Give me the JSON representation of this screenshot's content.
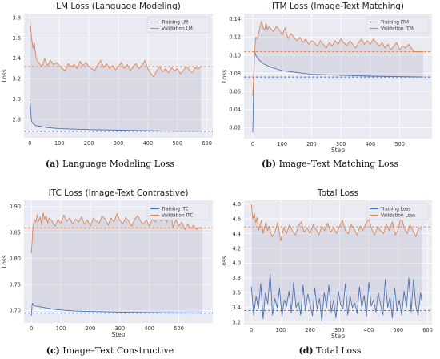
{
  "chart_data": [
    {
      "type": "line",
      "title": "LM Loss (Language Modeling)",
      "xlabel": "",
      "ylabel": "Loss",
      "xlim": [
        -20,
        620
      ],
      "ylim": [
        2.62,
        3.84
      ],
      "xticks": [
        0,
        100,
        200,
        300,
        400,
        500,
        600
      ],
      "yticks": [
        2.8,
        3.0,
        3.2,
        3.4,
        3.6,
        3.8
      ],
      "ytick_decimals": 1,
      "grid": true,
      "legend_position": "top-right",
      "series": [
        {
          "name": "Training LM",
          "color": "#4c72b0",
          "x": [
            0,
            5,
            10,
            20,
            40,
            60,
            80,
            100,
            150,
            200,
            300,
            400,
            500,
            580
          ],
          "y": [
            3.0,
            2.79,
            2.76,
            2.74,
            2.73,
            2.72,
            2.715,
            2.71,
            2.705,
            2.7,
            2.695,
            2.69,
            2.685,
            2.685
          ]
        },
        {
          "name": "Validation LM",
          "color": "#dd8452",
          "x": [
            0,
            5,
            10,
            15,
            20,
            25,
            30,
            35,
            40,
            45,
            50,
            55,
            60,
            70,
            80,
            90,
            100,
            110,
            120,
            130,
            140,
            150,
            160,
            170,
            180,
            190,
            200,
            210,
            220,
            230,
            240,
            250,
            260,
            270,
            280,
            290,
            300,
            310,
            320,
            330,
            340,
            350,
            360,
            370,
            380,
            390,
            400,
            410,
            420,
            430,
            440,
            450,
            460,
            470,
            480,
            490,
            500,
            510,
            520,
            530,
            540,
            550,
            560,
            570,
            580
          ],
          "y": [
            3.78,
            3.62,
            3.5,
            3.55,
            3.42,
            3.38,
            3.36,
            3.34,
            3.32,
            3.35,
            3.4,
            3.36,
            3.33,
            3.38,
            3.34,
            3.36,
            3.33,
            3.3,
            3.28,
            3.35,
            3.32,
            3.34,
            3.3,
            3.37,
            3.33,
            3.36,
            3.32,
            3.3,
            3.28,
            3.34,
            3.38,
            3.31,
            3.35,
            3.3,
            3.33,
            3.29,
            3.32,
            3.36,
            3.3,
            3.34,
            3.28,
            3.32,
            3.35,
            3.3,
            3.33,
            3.38,
            3.3,
            3.25,
            3.22,
            3.28,
            3.32,
            3.27,
            3.3,
            3.26,
            3.31,
            3.28,
            3.3,
            3.25,
            3.28,
            3.32,
            3.29,
            3.26,
            3.31,
            3.3,
            3.32
          ]
        }
      ],
      "hlines": [
        {
          "y": 3.32,
          "color": "#dd8452"
        },
        {
          "y": 2.685,
          "color": "#4c72b0"
        }
      ]
    },
    {
      "type": "line",
      "title": "ITM Loss (Image-Text Matching)",
      "xlabel": "Step",
      "ylabel": "Loss",
      "xlim": [
        -30,
        610
      ],
      "ylim": [
        0.008,
        0.146
      ],
      "xticks": [
        0,
        100,
        200,
        300,
        400,
        500
      ],
      "yticks": [
        0.02,
        0.04,
        0.06,
        0.08,
        0.1,
        0.12,
        0.14
      ],
      "ytick_decimals": 2,
      "grid": true,
      "legend_position": "top-right",
      "series": [
        {
          "name": "Training ITM",
          "color": "#4c72b0",
          "x": [
            0,
            3,
            6,
            10,
            20,
            40,
            60,
            80,
            100,
            150,
            200,
            300,
            400,
            500,
            580
          ],
          "y": [
            0.015,
            0.07,
            0.105,
            0.1,
            0.095,
            0.09,
            0.087,
            0.085,
            0.083,
            0.081,
            0.079,
            0.078,
            0.077,
            0.0765,
            0.076
          ]
        },
        {
          "name": "Validation ITM",
          "color": "#dd8452",
          "x": [
            0,
            5,
            10,
            15,
            20,
            25,
            30,
            35,
            40,
            45,
            50,
            55,
            60,
            70,
            80,
            90,
            100,
            110,
            120,
            130,
            140,
            150,
            160,
            170,
            180,
            190,
            200,
            210,
            220,
            230,
            240,
            250,
            260,
            270,
            280,
            290,
            300,
            310,
            320,
            330,
            340,
            350,
            360,
            370,
            380,
            390,
            400,
            410,
            420,
            430,
            440,
            450,
            460,
            470,
            480,
            490,
            500,
            510,
            520,
            530,
            540,
            550,
            560,
            570,
            580
          ],
          "y": [
            0.055,
            0.1,
            0.12,
            0.118,
            0.125,
            0.132,
            0.138,
            0.13,
            0.128,
            0.135,
            0.128,
            0.132,
            0.13,
            0.126,
            0.132,
            0.128,
            0.122,
            0.13,
            0.118,
            0.124,
            0.12,
            0.116,
            0.12,
            0.114,
            0.118,
            0.112,
            0.116,
            0.114,
            0.11,
            0.116,
            0.112,
            0.108,
            0.114,
            0.11,
            0.116,
            0.112,
            0.118,
            0.114,
            0.11,
            0.116,
            0.112,
            0.108,
            0.114,
            0.118,
            0.112,
            0.116,
            0.112,
            0.118,
            0.114,
            0.11,
            0.114,
            0.108,
            0.112,
            0.106,
            0.11,
            0.114,
            0.106,
            0.11,
            0.108,
            0.112,
            0.108,
            0.104,
            0.104,
            0.104,
            0.104
          ]
        }
      ],
      "hlines": [
        {
          "y": 0.104,
          "color": "#dd8452"
        },
        {
          "y": 0.076,
          "color": "#4c72b0"
        }
      ]
    },
    {
      "type": "line",
      "title": "ITC Loss (Image-Text Contrastive)",
      "xlabel": "Step",
      "ylabel": "Loss",
      "xlim": [
        -25,
        615
      ],
      "ylim": [
        0.676,
        0.912
      ],
      "xticks": [
        0,
        100,
        200,
        300,
        400,
        500
      ],
      "yticks": [
        0.7,
        0.75,
        0.8,
        0.85,
        0.9
      ],
      "ytick_decimals": 2,
      "grid": true,
      "legend_position": "top-right",
      "series": [
        {
          "name": "Training ITC",
          "color": "#4c72b0",
          "x": [
            0,
            3,
            6,
            10,
            20,
            40,
            60,
            80,
            100,
            150,
            200,
            300,
            400,
            500,
            580
          ],
          "y": [
            0.69,
            0.714,
            0.712,
            0.709,
            0.708,
            0.706,
            0.704,
            0.702,
            0.701,
            0.699,
            0.698,
            0.697,
            0.696,
            0.6955,
            0.695
          ]
        },
        {
          "name": "Validation ITC",
          "color": "#dd8452",
          "x": [
            0,
            5,
            10,
            15,
            20,
            25,
            30,
            35,
            40,
            45,
            50,
            55,
            60,
            70,
            80,
            90,
            100,
            110,
            120,
            130,
            140,
            150,
            160,
            170,
            180,
            190,
            200,
            210,
            220,
            230,
            240,
            250,
            260,
            270,
            280,
            290,
            300,
            310,
            320,
            330,
            340,
            350,
            360,
            370,
            380,
            390,
            400,
            410,
            420,
            430,
            440,
            450,
            460,
            470,
            480,
            490,
            500,
            510,
            520,
            530,
            540,
            550,
            560,
            570,
            580
          ],
          "y": [
            0.81,
            0.86,
            0.875,
            0.87,
            0.885,
            0.872,
            0.88,
            0.865,
            0.888,
            0.876,
            0.882,
            0.868,
            0.878,
            0.872,
            0.862,
            0.875,
            0.868,
            0.884,
            0.872,
            0.878,
            0.866,
            0.876,
            0.87,
            0.88,
            0.866,
            0.874,
            0.862,
            0.878,
            0.872,
            0.868,
            0.882,
            0.876,
            0.864,
            0.878,
            0.87,
            0.886,
            0.874,
            0.866,
            0.879,
            0.872,
            0.862,
            0.875,
            0.883,
            0.872,
            0.866,
            0.874,
            0.862,
            0.876,
            0.87,
            0.885,
            0.872,
            0.878,
            0.87,
            0.902,
            0.86,
            0.875,
            0.862,
            0.87,
            0.856,
            0.866,
            0.858,
            0.864,
            0.856,
            0.86,
            0.858
          ]
        }
      ],
      "hlines": [
        {
          "y": 0.859,
          "color": "#dd8452"
        },
        {
          "y": 0.695,
          "color": "#4c72b0"
        }
      ]
    },
    {
      "type": "line",
      "title": "Total Loss",
      "xlabel": "Step",
      "ylabel": "Loss",
      "xlim": [
        -25,
        615
      ],
      "ylim": [
        3.17,
        4.85
      ],
      "xticks": [
        0,
        100,
        200,
        300,
        400,
        500,
        600
      ],
      "yticks": [
        3.2,
        3.4,
        3.6,
        3.8,
        4.0,
        4.2,
        4.4,
        4.6,
        4.8
      ],
      "ytick_decimals": 1,
      "grid": true,
      "legend_position": "top-right",
      "series": [
        {
          "name": "Training Loss",
          "color": "#4c72b0",
          "x": [
            0,
            8,
            16,
            24,
            32,
            40,
            48,
            56,
            64,
            72,
            80,
            88,
            96,
            104,
            112,
            120,
            128,
            136,
            144,
            152,
            160,
            168,
            176,
            184,
            192,
            200,
            208,
            216,
            224,
            232,
            240,
            248,
            256,
            264,
            272,
            280,
            288,
            296,
            304,
            312,
            320,
            328,
            336,
            344,
            352,
            360,
            368,
            376,
            384,
            392,
            400,
            408,
            416,
            424,
            432,
            440,
            448,
            456,
            464,
            472,
            480,
            488,
            496,
            504,
            512,
            520,
            528,
            536,
            544,
            552,
            560,
            568,
            576,
            580
          ],
          "y": [
            3.68,
            3.3,
            3.55,
            3.38,
            3.72,
            3.25,
            3.6,
            3.45,
            3.86,
            3.3,
            3.52,
            3.4,
            3.66,
            3.28,
            3.5,
            3.42,
            3.62,
            3.33,
            3.74,
            3.4,
            3.48,
            3.3,
            3.7,
            3.36,
            3.58,
            3.44,
            3.29,
            3.66,
            3.38,
            3.52,
            3.22,
            3.6,
            3.4,
            3.7,
            3.34,
            3.5,
            3.26,
            3.62,
            3.44,
            3.38,
            3.72,
            3.3,
            3.55,
            3.4,
            3.46,
            3.32,
            3.68,
            3.4,
            3.56,
            3.28,
            3.74,
            3.42,
            3.5,
            3.34,
            3.6,
            3.44,
            3.3,
            3.78,
            3.4,
            3.54,
            3.26,
            3.66,
            3.36,
            3.5,
            3.3,
            3.62,
            3.4,
            3.8,
            3.34,
            3.78,
            3.42,
            3.3,
            3.6,
            3.5
          ]
        },
        {
          "name": "Validation Loss",
          "color": "#dd8452",
          "x": [
            0,
            5,
            10,
            15,
            20,
            25,
            30,
            35,
            40,
            45,
            50,
            55,
            60,
            70,
            80,
            90,
            100,
            110,
            120,
            130,
            140,
            150,
            160,
            170,
            180,
            190,
            200,
            210,
            220,
            230,
            240,
            250,
            260,
            270,
            280,
            290,
            300,
            310,
            320,
            330,
            340,
            350,
            360,
            370,
            380,
            390,
            400,
            410,
            420,
            430,
            440,
            450,
            460,
            470,
            480,
            490,
            500,
            510,
            520,
            530,
            540,
            550,
            560,
            570,
            580
          ],
          "y": [
            4.8,
            4.6,
            4.68,
            4.55,
            4.62,
            4.45,
            4.52,
            4.58,
            4.4,
            4.48,
            4.55,
            4.44,
            4.5,
            4.36,
            4.42,
            4.55,
            4.3,
            4.48,
            4.4,
            4.52,
            4.44,
            4.38,
            4.5,
            4.56,
            4.42,
            4.48,
            4.4,
            4.52,
            4.46,
            4.38,
            4.5,
            4.44,
            4.54,
            4.42,
            4.48,
            4.4,
            4.5,
            4.58,
            4.44,
            4.4,
            4.52,
            4.46,
            4.38,
            4.5,
            4.44,
            4.54,
            4.6,
            4.46,
            4.38,
            4.5,
            4.44,
            4.4,
            4.52,
            4.44,
            4.56,
            4.38,
            4.46,
            4.64,
            4.48,
            4.4,
            4.52,
            4.44,
            4.36,
            4.48,
            4.46
          ]
        }
      ],
      "hlines": [
        {
          "y": 4.49,
          "color": "#dd8452"
        },
        {
          "y": 3.36,
          "color": "#4c72b0"
        }
      ]
    }
  ],
  "captions": [
    {
      "letter": "(a)",
      "text": "Language Modeling Loss"
    },
    {
      "letter": "(b)",
      "text": "Image–Text Matching Loss"
    },
    {
      "letter": "(c)",
      "text": "Image–Text Constructive"
    },
    {
      "letter": "(d)",
      "text": "Total Loss"
    }
  ]
}
